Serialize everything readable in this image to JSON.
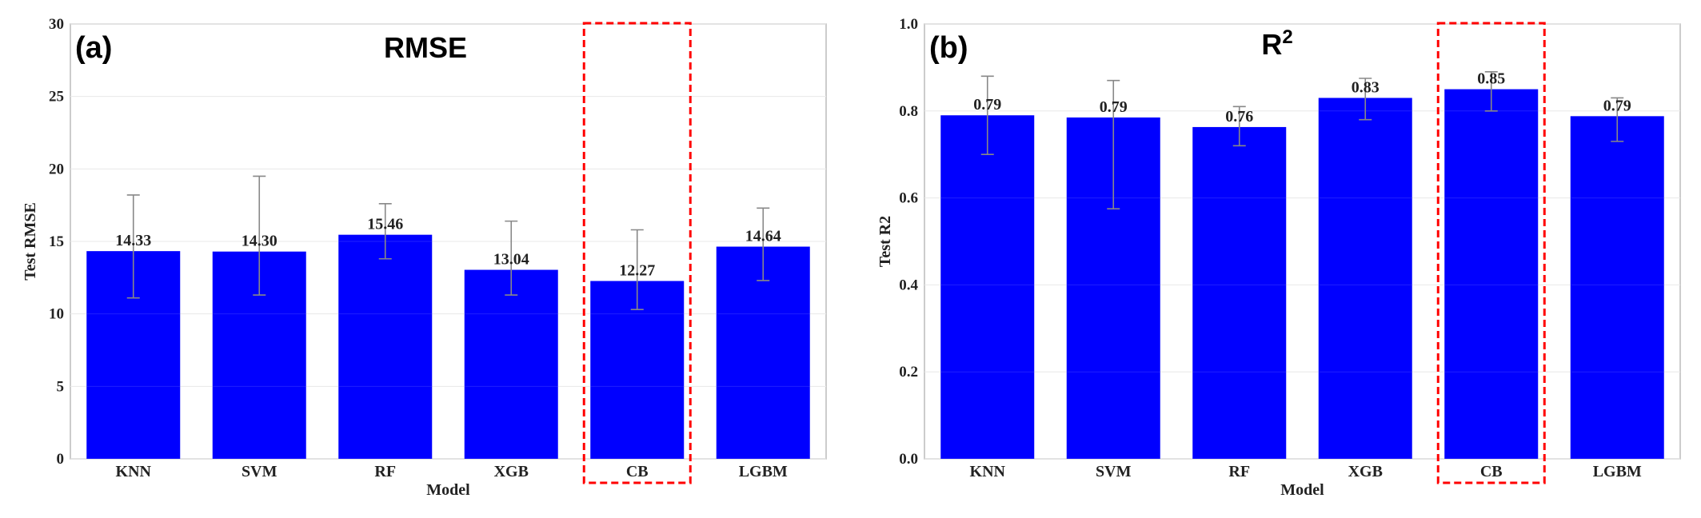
{
  "chart_data": [
    {
      "type": "bar",
      "panel_tag": "(a)",
      "title": "RMSE",
      "title_sup": "",
      "xlabel": "Model",
      "ylabel": "Test RMSE",
      "categories": [
        "KNN",
        "SVM",
        "RF",
        "XGB",
        "CB",
        "LGBM"
      ],
      "values": [
        14.33,
        14.3,
        15.46,
        13.04,
        12.27,
        14.64
      ],
      "value_labels": [
        "14.33",
        "14.30",
        "15.46",
        "13.04",
        "12.27",
        "14.64"
      ],
      "error_low": [
        11.1,
        11.3,
        13.8,
        11.3,
        10.3,
        12.3
      ],
      "error_high": [
        18.2,
        19.5,
        17.6,
        16.4,
        15.8,
        17.3
      ],
      "ylim": [
        0,
        30
      ],
      "yticks": [
        0,
        5,
        10,
        15,
        20,
        25,
        30
      ],
      "ytick_labels": [
        "0",
        "5",
        "10",
        "15",
        "20",
        "25",
        "30"
      ],
      "highlight": "CB",
      "bar_color": "#0000ff",
      "highlight_color": "#ff0000",
      "error_color": "#888888",
      "grid": true
    },
    {
      "type": "bar",
      "panel_tag": "(b)",
      "title": "R",
      "title_sup": "2",
      "xlabel": "Model",
      "ylabel": "Test R2",
      "categories": [
        "KNN",
        "SVM",
        "RF",
        "XGB",
        "CB",
        "LGBM"
      ],
      "values": [
        0.79,
        0.785,
        0.763,
        0.83,
        0.85,
        0.788
      ],
      "value_labels": [
        "0.79",
        "0.79",
        "0.76",
        "0.83",
        "0.85",
        "0.79"
      ],
      "error_low": [
        0.7,
        0.575,
        0.72,
        0.78,
        0.8,
        0.73
      ],
      "error_high": [
        0.88,
        0.87,
        0.81,
        0.875,
        0.89,
        0.83
      ],
      "ylim": [
        0,
        1.0
      ],
      "yticks": [
        0,
        0.2,
        0.4,
        0.6,
        0.8,
        1.0
      ],
      "ytick_labels": [
        "0.0",
        "0.2",
        "0.4",
        "0.6",
        "0.8",
        "1.0"
      ],
      "highlight": "CB",
      "bar_color": "#0000ff",
      "highlight_color": "#ff0000",
      "error_color": "#888888",
      "grid": true
    }
  ]
}
